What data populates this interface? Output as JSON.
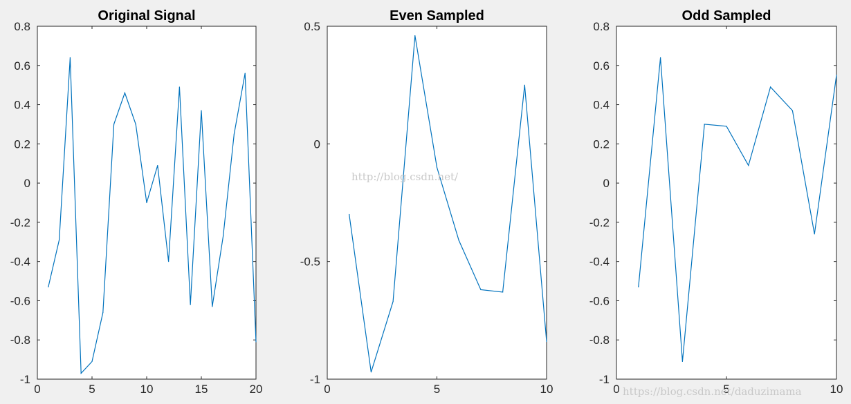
{
  "figure": {
    "background": "#f0f0f0",
    "line_color": "#0072bd"
  },
  "chart_data": [
    {
      "type": "line",
      "title": "Original Signal",
      "xlim": [
        0,
        20
      ],
      "ylim": [
        -1,
        0.8
      ],
      "xticks": [
        0,
        5,
        10,
        15,
        20
      ],
      "yticks": [
        -1,
        -0.8,
        -0.6,
        -0.4,
        -0.2,
        0,
        0.2,
        0.4,
        0.6,
        0.8
      ],
      "xtick_labels": [
        "0",
        "5",
        "10",
        "15",
        "20"
      ],
      "ytick_labels": [
        "-1",
        "-0.8",
        "-0.6",
        "-0.4",
        "-0.2",
        "0",
        "0.2",
        "0.4",
        "0.6",
        "0.8"
      ],
      "grid": false,
      "series": [
        {
          "x": [
            1,
            2,
            3,
            4,
            5,
            6,
            7,
            8,
            9,
            10,
            11,
            12,
            13,
            14,
            15,
            16,
            17,
            18,
            19,
            20
          ],
          "values": [
            -0.53,
            -0.29,
            0.64,
            -0.97,
            -0.91,
            -0.66,
            0.3,
            0.46,
            0.3,
            -0.1,
            0.09,
            -0.4,
            0.49,
            -0.62,
            0.37,
            -0.63,
            -0.27,
            0.25,
            0.56,
            -0.81
          ]
        }
      ]
    },
    {
      "type": "line",
      "title": "Even Sampled",
      "xlim": [
        0,
        10
      ],
      "ylim": [
        -1,
        0.5
      ],
      "xticks": [
        0,
        5,
        10
      ],
      "yticks": [
        -1,
        -0.5,
        0,
        0.5
      ],
      "xtick_labels": [
        "0",
        "5",
        "10"
      ],
      "ytick_labels": [
        "-1",
        "-0.5",
        "0",
        "0.5"
      ],
      "grid": false,
      "series": [
        {
          "x": [
            1,
            2,
            3,
            4,
            5,
            6,
            7,
            8,
            9,
            10
          ],
          "values": [
            -0.3,
            -0.97,
            -0.67,
            0.46,
            -0.1,
            -0.41,
            -0.62,
            -0.63,
            0.25,
            -0.84
          ]
        }
      ]
    },
    {
      "type": "line",
      "title": "Odd Sampled",
      "xlim": [
        0,
        10
      ],
      "ylim": [
        -1,
        0.8
      ],
      "xticks": [
        0,
        5,
        10
      ],
      "yticks": [
        -1,
        -0.8,
        -0.6,
        -0.4,
        -0.2,
        0,
        0.2,
        0.4,
        0.6,
        0.8
      ],
      "xtick_labels": [
        "0",
        "5",
        "10"
      ],
      "ytick_labels": [
        "-1",
        "-0.8",
        "-0.6",
        "-0.4",
        "-0.2",
        "0",
        "0.2",
        "0.4",
        "0.6",
        "0.8"
      ],
      "grid": false,
      "series": [
        {
          "x": [
            1,
            2,
            3,
            4,
            5,
            6,
            7,
            8,
            9,
            10
          ],
          "values": [
            -0.53,
            0.64,
            -0.91,
            0.3,
            0.29,
            0.09,
            0.49,
            0.37,
            -0.26,
            0.55
          ]
        }
      ]
    }
  ],
  "watermarks": [
    {
      "text": "http://blog.csdn.net/"
    },
    {
      "text": "https://blog.csdn.net/daduzimama"
    }
  ]
}
